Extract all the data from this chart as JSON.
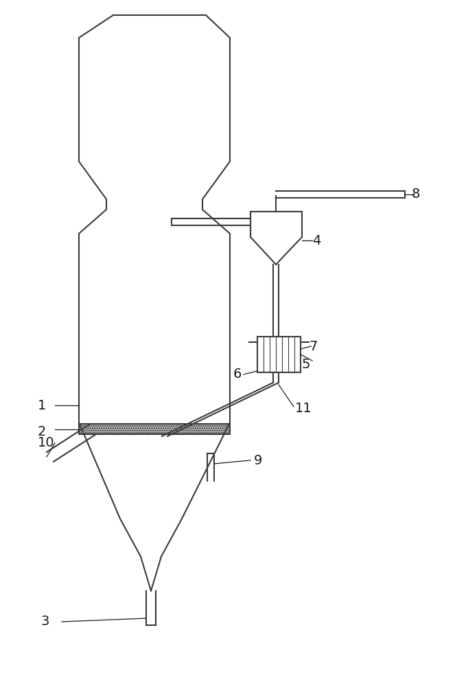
{
  "bg_color": "#ffffff",
  "line_color": "#3a3a3a",
  "line_width": 1.5,
  "fig_w": 6.63,
  "fig_h": 10.0,
  "dpi": 100
}
